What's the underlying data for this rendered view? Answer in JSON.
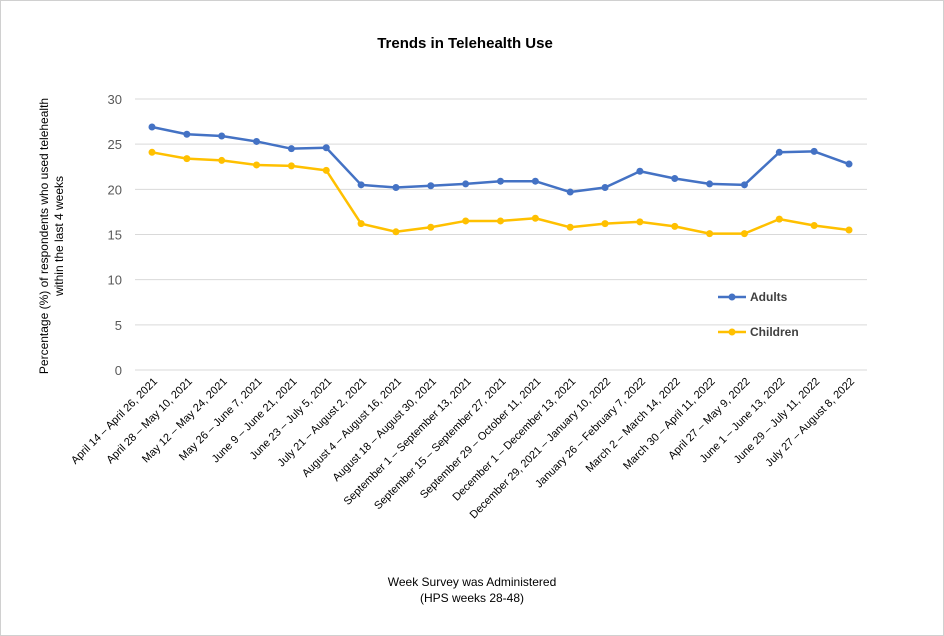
{
  "chart_data": {
    "type": "line",
    "title": "Trends in Telehealth Use",
    "ylabel": [
      "Percentage (%) of respondents who used telehealth",
      "within the last 4 weeks"
    ],
    "xlabel": [
      "Week Survey was Administered",
      "(HPS weeks 28-48)"
    ],
    "ylim": [
      0,
      30
    ],
    "yticks": [
      0,
      5,
      10,
      15,
      20,
      25,
      30
    ],
    "grid": true,
    "legend_position": "right",
    "categories": [
      "April 14 – April 26, 2021",
      "April 28 – May 10, 2021",
      "May 12 – May 24, 2021",
      "May 26 – June 7, 2021",
      "June 9 – June 21, 2021",
      "June 23 – July 5, 2021",
      "July 21 – August 2, 2021",
      "August 4 – August 16, 2021",
      "August 18 – August 30, 2021",
      "September 1 – September 13, 2021",
      "September 15 – September 27, 2021",
      "September 29 – October 11, 2021",
      "December 1 – December 13, 2021",
      "December 29, 2021 – January 10, 2022",
      "January 26 – February 7, 2022",
      "March 2 – March 14, 2022",
      "March 30 – April 11, 2022",
      "April 27 – May 9, 2022",
      "June 1 – June 13, 2022",
      "June 29 – July 11, 2022",
      "July 27 – August 8, 2022"
    ],
    "series": [
      {
        "name": "Adults",
        "color": "#4472C4",
        "values": [
          26.9,
          26.1,
          25.9,
          25.3,
          24.5,
          24.6,
          20.5,
          20.2,
          20.4,
          20.6,
          20.9,
          20.9,
          19.7,
          20.2,
          22.0,
          21.2,
          20.6,
          20.5,
          24.1,
          24.2,
          22.8
        ]
      },
      {
        "name": "Children",
        "color": "#FFC000",
        "values": [
          24.1,
          23.4,
          23.2,
          22.7,
          22.6,
          22.1,
          16.2,
          15.3,
          15.8,
          16.5,
          16.5,
          16.8,
          15.8,
          16.2,
          16.4,
          15.9,
          15.1,
          15.1,
          16.7,
          16.0,
          15.5
        ]
      }
    ]
  }
}
